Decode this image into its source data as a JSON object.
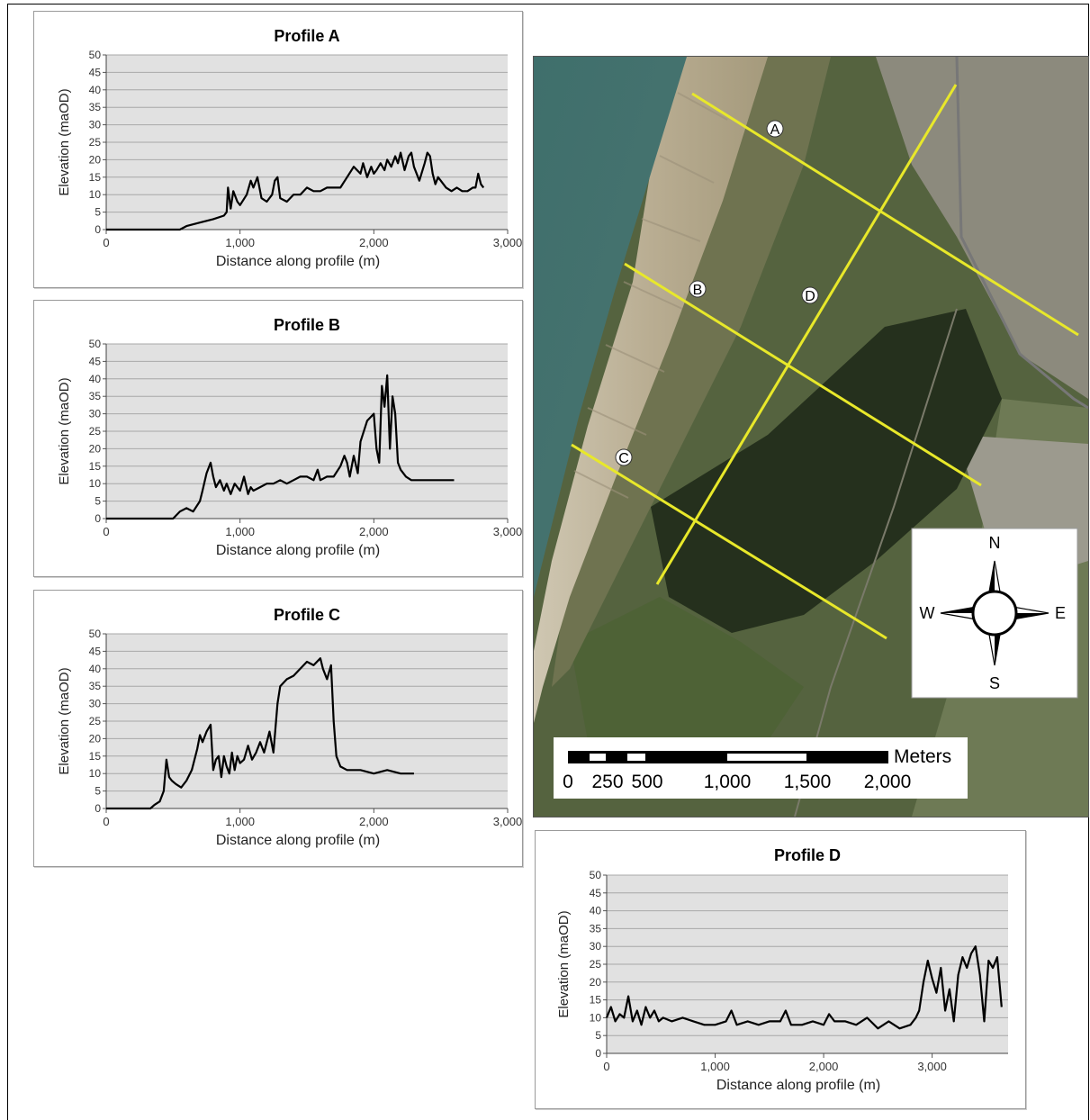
{
  "chart_data": [
    {
      "type": "line",
      "title": "Profile A",
      "xlabel": "Distance along profile (m)",
      "ylabel": "Elevation (maOD)",
      "xlim": [
        0,
        3000
      ],
      "ylim": [
        0,
        50
      ],
      "xticks": [
        "0",
        "1,000",
        "2,000",
        "3,000"
      ],
      "yticks": [
        "0",
        "5",
        "10",
        "15",
        "20",
        "25",
        "30",
        "35",
        "40",
        "45",
        "50"
      ],
      "x": [
        0,
        550,
        600,
        700,
        800,
        880,
        900,
        910,
        930,
        950,
        980,
        1000,
        1050,
        1080,
        1100,
        1130,
        1160,
        1200,
        1240,
        1260,
        1280,
        1300,
        1350,
        1400,
        1450,
        1500,
        1550,
        1600,
        1650,
        1700,
        1750,
        1800,
        1850,
        1900,
        1920,
        1950,
        1980,
        2000,
        2020,
        2050,
        2080,
        2100,
        2130,
        2160,
        2180,
        2200,
        2230,
        2260,
        2280,
        2300,
        2340,
        2380,
        2400,
        2420,
        2440,
        2460,
        2480,
        2500,
        2540,
        2580,
        2620,
        2660,
        2700,
        2740,
        2760,
        2780,
        2800,
        2820
      ],
      "y": [
        0,
        0,
        1,
        2,
        3,
        4,
        5,
        12,
        6,
        11,
        8,
        7,
        10,
        14,
        12,
        15,
        9,
        8,
        10,
        14,
        15,
        9,
        8,
        10,
        10,
        12,
        11,
        11,
        12,
        12,
        12,
        15,
        18,
        16,
        19,
        15,
        18,
        16,
        17,
        19,
        17,
        20,
        18,
        21,
        19,
        22,
        17,
        21,
        22,
        18,
        14,
        19,
        22,
        21,
        16,
        13,
        15,
        14,
        12,
        11,
        12,
        11,
        11,
        12,
        12,
        16,
        13,
        12
      ]
    },
    {
      "type": "line",
      "title": "Profile B",
      "xlabel": "Distance along profile (m)",
      "ylabel": "Elevation (maOD)",
      "xlim": [
        0,
        3000
      ],
      "ylim": [
        0,
        50
      ],
      "xticks": [
        "0",
        "1,000",
        "2,000",
        "3,000"
      ],
      "yticks": [
        "0",
        "5",
        "10",
        "15",
        "20",
        "25",
        "30",
        "35",
        "40",
        "45",
        "50"
      ],
      "x": [
        0,
        500,
        550,
        600,
        650,
        700,
        720,
        750,
        780,
        800,
        820,
        850,
        880,
        900,
        930,
        960,
        1000,
        1030,
        1060,
        1080,
        1100,
        1150,
        1200,
        1250,
        1300,
        1350,
        1400,
        1450,
        1500,
        1550,
        1580,
        1600,
        1650,
        1700,
        1750,
        1780,
        1800,
        1820,
        1850,
        1880,
        1900,
        1950,
        2000,
        2020,
        2040,
        2060,
        2080,
        2100,
        2120,
        2140,
        2160,
        2180,
        2200,
        2240,
        2280,
        2320,
        2400,
        2500,
        2600
      ],
      "y": [
        0,
        0,
        2,
        3,
        2,
        5,
        8,
        13,
        16,
        12,
        9,
        11,
        8,
        10,
        7,
        10,
        8,
        12,
        7,
        9,
        8,
        9,
        10,
        10,
        11,
        10,
        11,
        12,
        12,
        11,
        14,
        11,
        12,
        12,
        15,
        18,
        16,
        12,
        18,
        13,
        22,
        28,
        30,
        20,
        16,
        38,
        32,
        41,
        20,
        35,
        30,
        16,
        14,
        12,
        11,
        11,
        11,
        11,
        11
      ]
    },
    {
      "type": "line",
      "title": "Profile C",
      "xlabel": "Distance along profile (m)",
      "ylabel": "Elevation (maOD)",
      "xlim": [
        0,
        3000
      ],
      "ylim": [
        0,
        50
      ],
      "xticks": [
        "0",
        "1,000",
        "2,000",
        "3,000"
      ],
      "yticks": [
        "0",
        "5",
        "10",
        "15",
        "20",
        "25",
        "30",
        "35",
        "40",
        "45",
        "50"
      ],
      "x": [
        0,
        330,
        360,
        400,
        430,
        450,
        470,
        490,
        520,
        560,
        600,
        640,
        680,
        700,
        720,
        750,
        780,
        800,
        820,
        840,
        860,
        880,
        900,
        920,
        940,
        960,
        980,
        1000,
        1030,
        1060,
        1090,
        1120,
        1150,
        1180,
        1200,
        1220,
        1250,
        1280,
        1300,
        1350,
        1400,
        1450,
        1500,
        1550,
        1600,
        1620,
        1650,
        1680,
        1700,
        1720,
        1750,
        1800,
        1850,
        1900,
        2000,
        2100,
        2200,
        2300
      ],
      "y": [
        0,
        0,
        1,
        2,
        5,
        14,
        9,
        8,
        7,
        6,
        8,
        11,
        17,
        21,
        19,
        22,
        24,
        11,
        14,
        15,
        9,
        15,
        12,
        10,
        16,
        11,
        15,
        13,
        14,
        18,
        14,
        16,
        19,
        16,
        19,
        22,
        16,
        30,
        35,
        37,
        38,
        40,
        42,
        41,
        43,
        40,
        37,
        41,
        25,
        15,
        12,
        11,
        11,
        11,
        10,
        11,
        10,
        10
      ]
    },
    {
      "type": "line",
      "title": "Profile D",
      "xlabel": "Distance along profile (m)",
      "ylabel": "Elevation (maOD)",
      "xlim": [
        0,
        3700
      ],
      "ylim": [
        0,
        50
      ],
      "xticks": [
        "0",
        "1,000",
        "2,000",
        "3,000"
      ],
      "yticks": [
        "0",
        "5",
        "10",
        "15",
        "20",
        "25",
        "30",
        "35",
        "40",
        "45",
        "50"
      ],
      "x": [
        0,
        40,
        80,
        120,
        160,
        200,
        240,
        280,
        320,
        360,
        400,
        440,
        480,
        520,
        600,
        700,
        800,
        900,
        1000,
        1100,
        1150,
        1200,
        1300,
        1400,
        1500,
        1600,
        1650,
        1700,
        1800,
        1900,
        2000,
        2050,
        2100,
        2200,
        2300,
        2400,
        2500,
        2600,
        2700,
        2800,
        2850,
        2880,
        2920,
        2960,
        3000,
        3040,
        3080,
        3120,
        3160,
        3200,
        3240,
        3280,
        3320,
        3360,
        3400,
        3440,
        3480,
        3520,
        3560,
        3600,
        3640
      ],
      "y": [
        10,
        13,
        9,
        11,
        10,
        16,
        9,
        12,
        8,
        13,
        10,
        12,
        9,
        10,
        9,
        10,
        9,
        8,
        8,
        9,
        12,
        8,
        9,
        8,
        9,
        9,
        12,
        8,
        8,
        9,
        8,
        11,
        9,
        9,
        8,
        10,
        7,
        9,
        7,
        8,
        10,
        12,
        20,
        26,
        21,
        17,
        24,
        12,
        18,
        9,
        22,
        27,
        24,
        28,
        30,
        22,
        9,
        26,
        24,
        27,
        13
      ]
    }
  ],
  "map": {
    "profile_labels": [
      "A",
      "B",
      "C",
      "D"
    ],
    "compass": {
      "n": "N",
      "s": "S",
      "e": "E",
      "w": "W"
    },
    "scale_unit": "Meters",
    "scale_labels": [
      "0",
      "250",
      "500",
      "1,000",
      "1,500",
      "2,000"
    ]
  },
  "colors": {
    "profile_line": "#e8e82a",
    "plot_bg": "#e1e1e1",
    "sea": "#3d6a66",
    "sand": "#c9bea5",
    "vegetation": "#3a4a2c"
  }
}
